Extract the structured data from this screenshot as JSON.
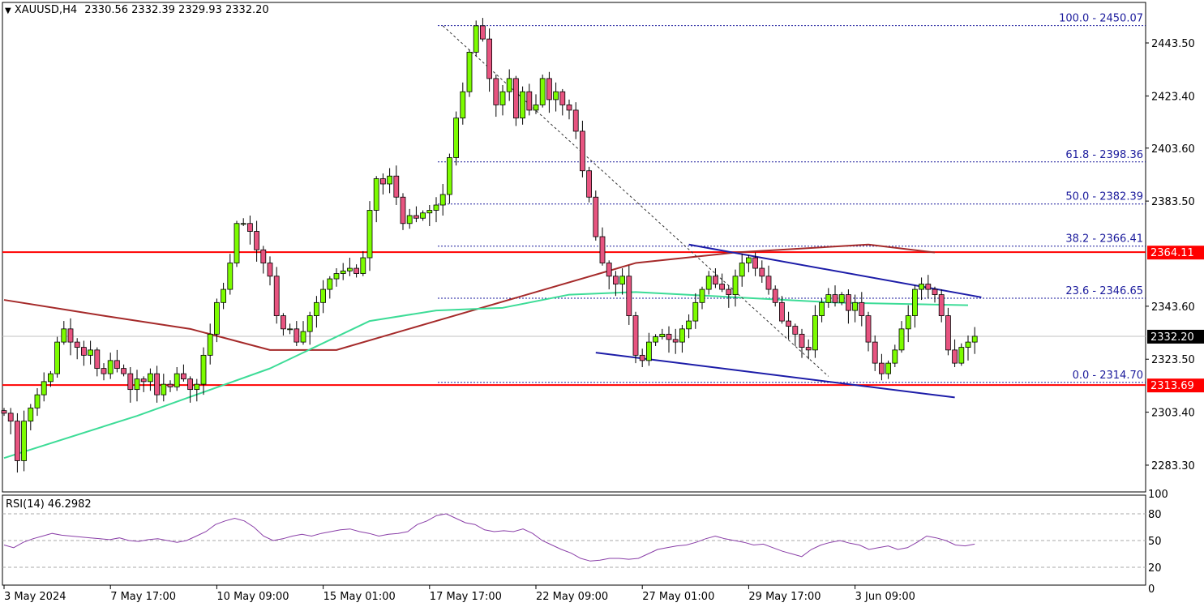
{
  "header": {
    "symbol": "XAUUSD,H4",
    "ohlc": "2330.56 2332.39 2329.93 2332.20"
  },
  "rsi_label": "RSI(14) 46.2982",
  "colors": {
    "bull": "#7cfc00",
    "bear": "#e75480",
    "fib": "#1a1a9c",
    "level": "#ff0000",
    "ma_slow": "#a52a2a",
    "ma_fast": "#3ddc97",
    "rsi": "#8a3fa8",
    "channel": "#1c1ca8"
  },
  "chart_data": {
    "type": "candlestick",
    "title": "XAUUSD,H4",
    "ylim": [
      2277,
      2458
    ],
    "yticks": [
      "2443.50",
      "2423.40",
      "2403.60",
      "2383.50",
      "2343.60",
      "2323.50",
      "2303.40",
      "2283.30"
    ],
    "ytick_values": [
      2443.5,
      2423.4,
      2403.6,
      2383.5,
      2343.6,
      2323.5,
      2303.4,
      2283.3
    ],
    "xticks": [
      {
        "label": "3 May 2024",
        "index": 0
      },
      {
        "label": "7 May 17:00",
        "index": 16
      },
      {
        "label": "10 May 09:00",
        "index": 32
      },
      {
        "label": "15 May 01:00",
        "index": 48
      },
      {
        "label": "17 May 17:00",
        "index": 64
      },
      {
        "label": "22 May 09:00",
        "index": 80
      },
      {
        "label": "27 May 01:00",
        "index": 96
      },
      {
        "label": "29 May 17:00",
        "index": 112
      },
      {
        "label": "3 Jun 09:00",
        "index": 128
      }
    ],
    "closes": [
      2303,
      2300,
      2285,
      2300,
      2305,
      2310,
      2315,
      2318,
      2330,
      2335,
      2330,
      2328,
      2325,
      2327,
      2320,
      2318,
      2323,
      2320,
      2318,
      2312,
      2316,
      2315,
      2318,
      2310,
      2314,
      2313,
      2318,
      2316,
      2312,
      2314,
      2325,
      2333,
      2345,
      2350,
      2360,
      2375,
      2375,
      2372,
      2365,
      2360,
      2355,
      2340,
      2335,
      2335,
      2330,
      2334,
      2340,
      2345,
      2350,
      2354,
      2356,
      2357,
      2358,
      2356,
      2362,
      2380,
      2392,
      2390,
      2393,
      2385,
      2375,
      2378,
      2377,
      2379,
      2380,
      2382,
      2386,
      2400,
      2415,
      2425,
      2440,
      2450,
      2445,
      2430,
      2420,
      2425,
      2430,
      2415,
      2425,
      2418,
      2420,
      2430,
      2422,
      2425,
      2420,
      2418,
      2410,
      2395,
      2385,
      2370,
      2360,
      2355,
      2352,
      2355,
      2340,
      2325,
      2323,
      2330,
      2332,
      2333,
      2331,
      2330,
      2335,
      2338,
      2345,
      2350,
      2355,
      2352,
      2350,
      2348,
      2355,
      2360,
      2362,
      2358,
      2355,
      2350,
      2345,
      2338,
      2336,
      2333,
      2328,
      2327,
      2340,
      2345,
      2348,
      2345,
      2348,
      2342,
      2345,
      2340,
      2330,
      2322,
      2318,
      2322,
      2327,
      2335,
      2340,
      2350,
      2352,
      2350,
      2348,
      2340,
      2327,
      2322,
      2328,
      2330,
      2332.2
    ],
    "current_price": {
      "value": 2332.2,
      "label": "2332.20"
    },
    "levels": [
      {
        "value": 2364.11,
        "label": "2364.11"
      },
      {
        "value": 2313.69,
        "label": "2313.69"
      }
    ],
    "fibonacci": [
      {
        "value": 2450.07,
        "label": "100.0 - 2450.07"
      },
      {
        "value": 2398.36,
        "label": "61.8 - 2398.36"
      },
      {
        "value": 2382.39,
        "label": "50.0 - 2382.39"
      },
      {
        "value": 2366.41,
        "label": "38.2 - 2366.41"
      },
      {
        "value": 2346.65,
        "label": "23.6 - 2346.65"
      },
      {
        "value": 2314.7,
        "label": "0.0 - 2314.70"
      }
    ],
    "ma_fast": [
      [
        0,
        2286
      ],
      [
        20,
        2302
      ],
      [
        40,
        2320
      ],
      [
        55,
        2338
      ],
      [
        65,
        2342
      ],
      [
        75,
        2343
      ],
      [
        85,
        2348
      ],
      [
        95,
        2349
      ],
      [
        110,
        2347
      ],
      [
        125,
        2345
      ],
      [
        145,
        2344
      ]
    ],
    "ma_slow": [
      [
        0,
        2346
      ],
      [
        15,
        2340
      ],
      [
        28,
        2335
      ],
      [
        40,
        2327
      ],
      [
        50,
        2327
      ],
      [
        65,
        2338
      ],
      [
        80,
        2349
      ],
      [
        95,
        2360
      ],
      [
        110,
        2364
      ],
      [
        130,
        2367
      ],
      [
        140,
        2364
      ]
    ],
    "rsi": {
      "label": "RSI(14)",
      "value": 46.2982,
      "ylim": [
        0,
        100
      ],
      "levels": [
        20,
        50,
        80
      ],
      "ytick_labels": [
        "100",
        "80",
        "50",
        "20",
        "0"
      ],
      "values": [
        45,
        42,
        48,
        52,
        55,
        58,
        56,
        55,
        54,
        53,
        52,
        51,
        53,
        50,
        49,
        51,
        52,
        50,
        48,
        50,
        55,
        60,
        68,
        72,
        75,
        72,
        65,
        55,
        50,
        52,
        55,
        57,
        55,
        58,
        60,
        62,
        63,
        60,
        58,
        55,
        57,
        58,
        60,
        68,
        72,
        78,
        80,
        75,
        70,
        68,
        62,
        60,
        61,
        60,
        63,
        58,
        50,
        45,
        40,
        36,
        30,
        27,
        28,
        30,
        30,
        29,
        30,
        35,
        40,
        42,
        44,
        45,
        48,
        52,
        55,
        52,
        50,
        48,
        45,
        46,
        42,
        38,
        35,
        32,
        40,
        45,
        48,
        50,
        47,
        45,
        40,
        42,
        44,
        40,
        42,
        48,
        55,
        53,
        50,
        45,
        44,
        46
      ]
    },
    "channel": {
      "upper": [
        [
          103,
          2367
        ],
        [
          147,
          2347
        ]
      ],
      "lower": [
        [
          89,
          2326
        ],
        [
          143,
          2309
        ]
      ]
    },
    "trendline": [
      [
        66,
        2450
      ],
      [
        124,
        2317
      ]
    ]
  }
}
